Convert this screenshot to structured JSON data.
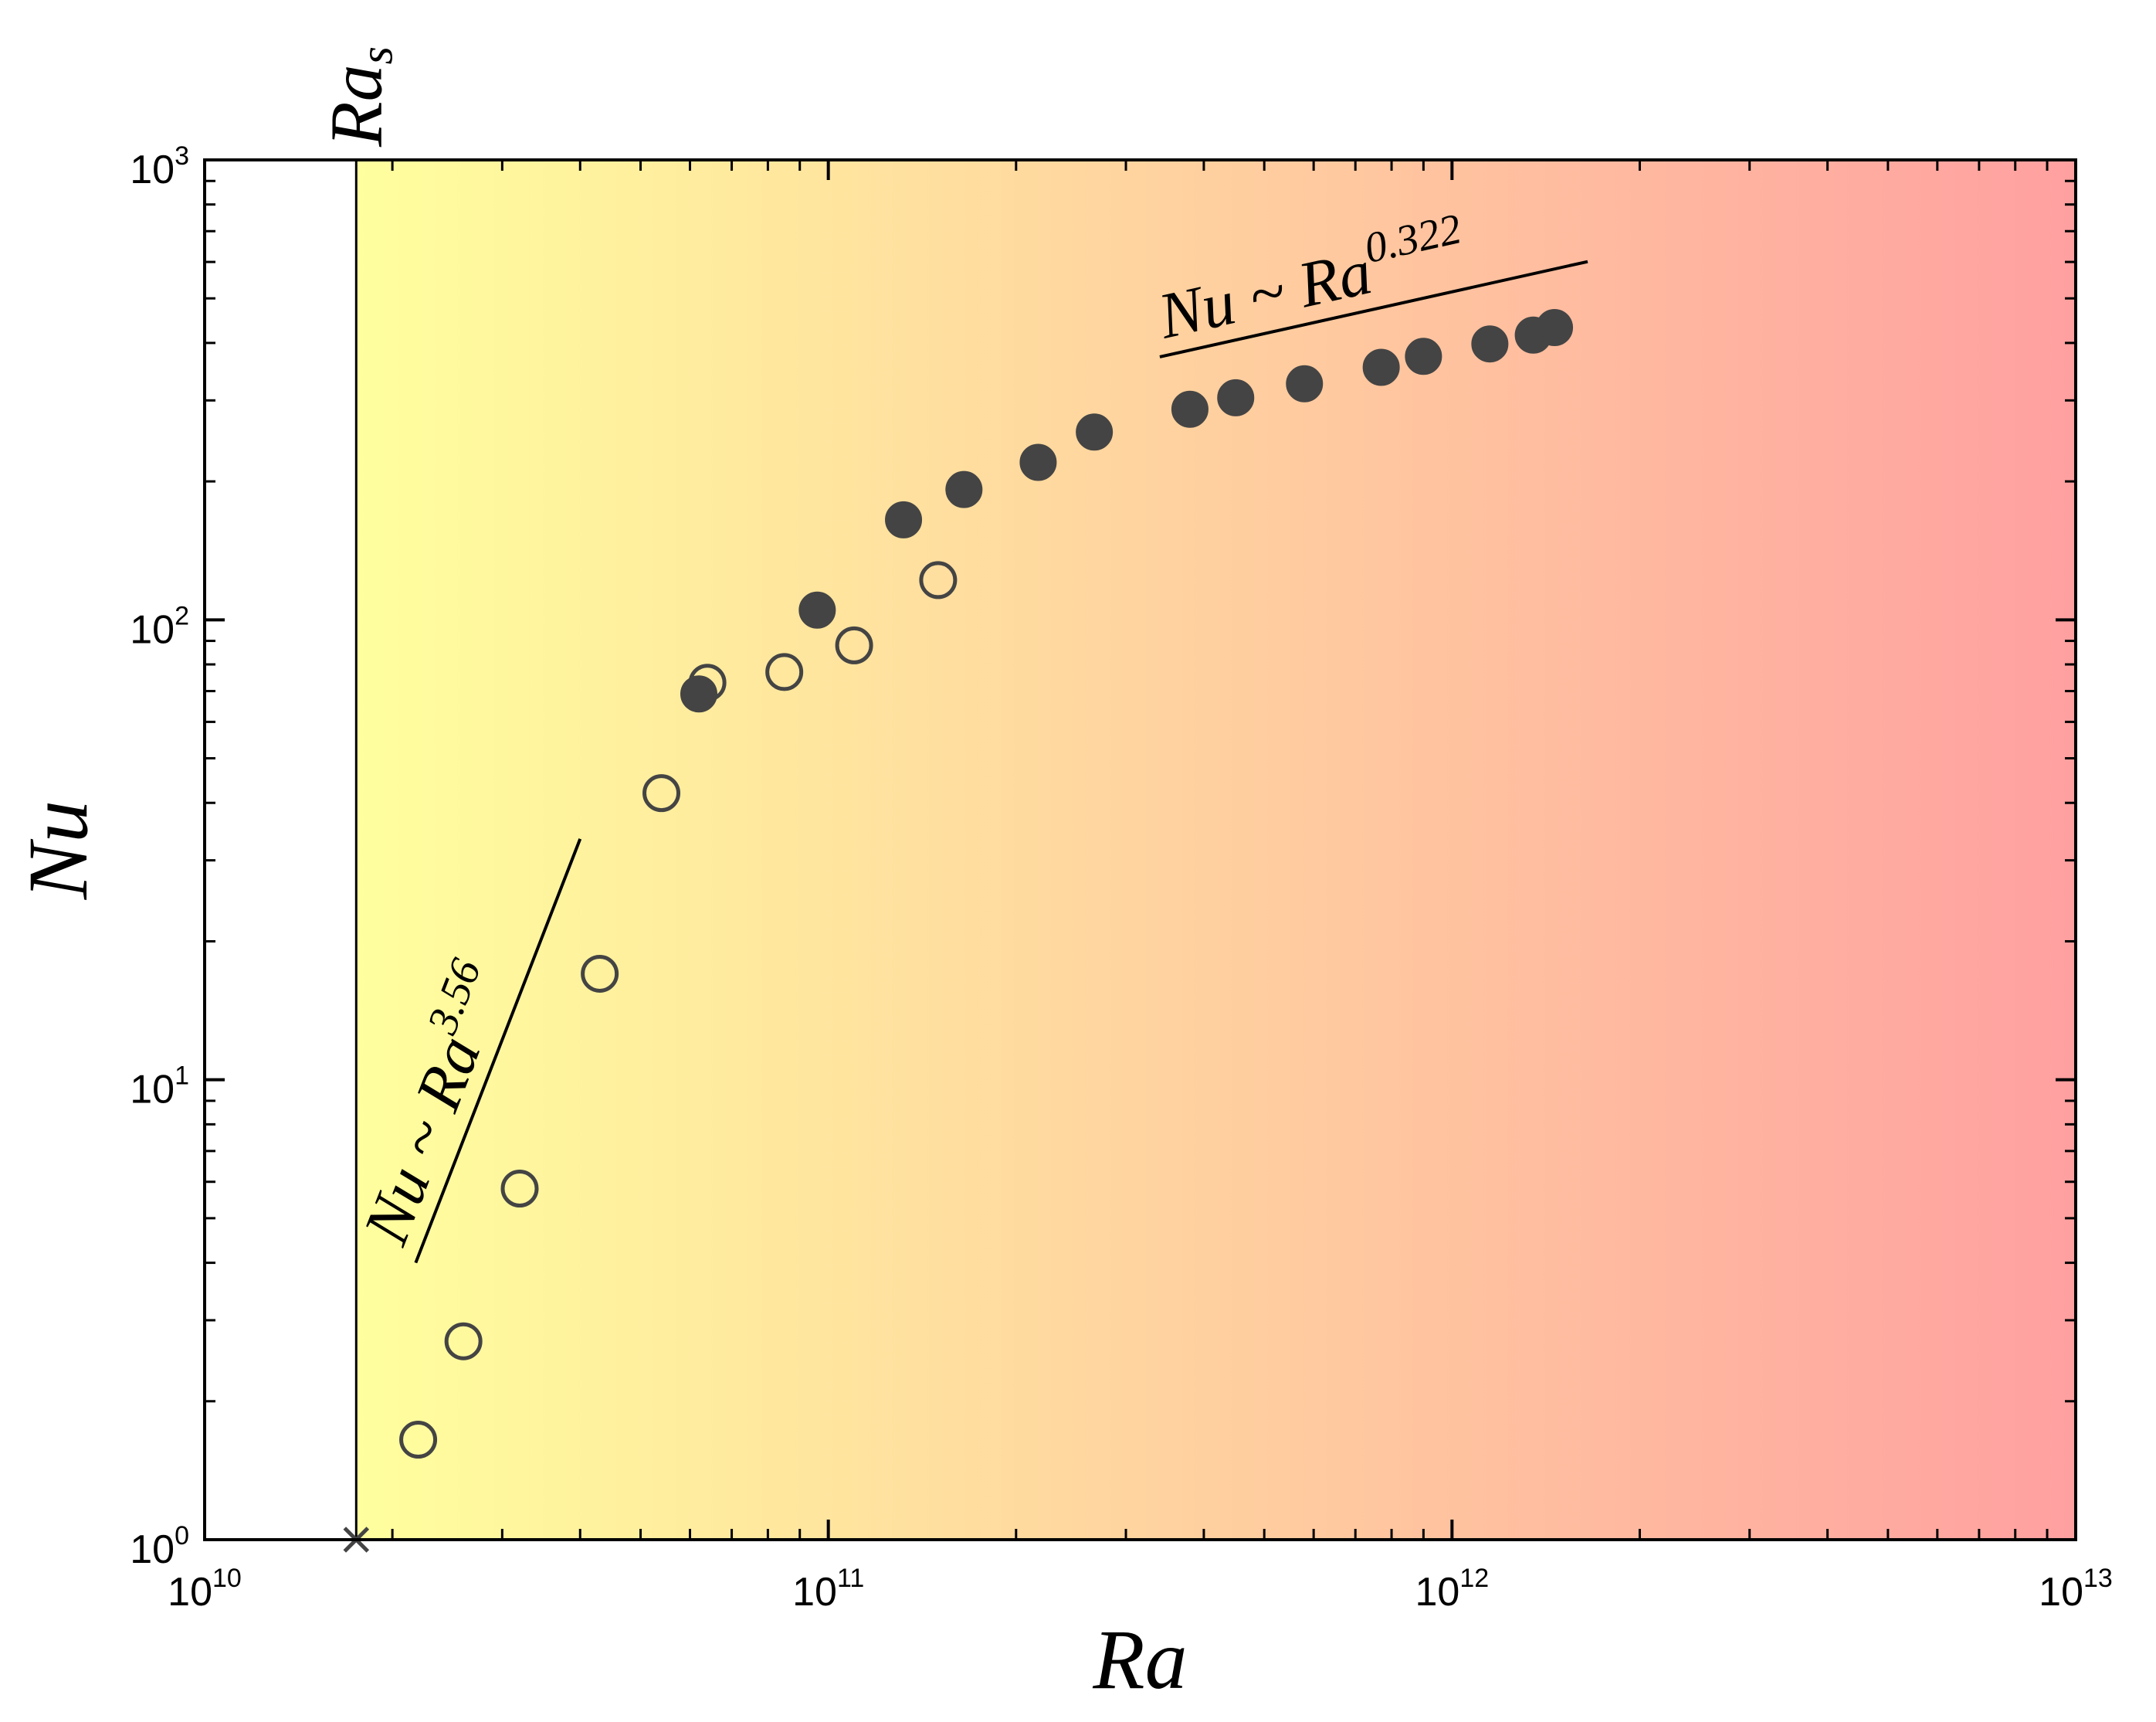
{
  "chart_data": {
    "type": "scatter",
    "xscale": "log",
    "yscale": "log",
    "xlim": [
      10000000000.0,
      10000000000000.0
    ],
    "ylim": [
      1,
      1000
    ],
    "xlabel": "Ra",
    "ylabel": "Nu",
    "x_ticks": [
      {
        "base": "10",
        "exp": "10",
        "value": 10000000000.0
      },
      {
        "base": "10",
        "exp": "11",
        "value": 100000000000.0
      },
      {
        "base": "10",
        "exp": "12",
        "value": 1000000000000.0
      },
      {
        "base": "10",
        "exp": "13",
        "value": 10000000000000.0
      }
    ],
    "y_ticks": [
      {
        "base": "10",
        "exp": "0",
        "value": 1
      },
      {
        "base": "10",
        "exp": "1",
        "value": 10
      },
      {
        "base": "10",
        "exp": "2",
        "value": 100
      },
      {
        "base": "10",
        "exp": "3",
        "value": 1000
      }
    ],
    "background_gradient": {
      "from": "#ffff9e",
      "to": "#ffa0a0"
    },
    "critical_line": {
      "x": 17500000000.0,
      "label_base": "Ra",
      "label_sub": "s"
    },
    "critical_marker": {
      "x": 17500000000.0,
      "y": 1,
      "symbol": "x",
      "color": "#444444"
    },
    "series": [
      {
        "marker": "open-circle",
        "color": "#444444",
        "points": [
          [
            22000000000.0,
            1.65
          ],
          [
            26000000000.0,
            2.7
          ],
          [
            32000000000.0,
            5.8
          ],
          [
            43000000000.0,
            17
          ],
          [
            54000000000.0,
            42
          ],
          [
            64000000000.0,
            73
          ],
          [
            85000000000.0,
            77
          ],
          [
            110000000000.0,
            88
          ],
          [
            150000000000.0,
            122
          ]
        ]
      },
      {
        "marker": "filled-circle",
        "color": "#444444",
        "points": [
          [
            62000000000.0,
            69
          ],
          [
            96000000000.0,
            105
          ],
          [
            132000000000.0,
            165
          ],
          [
            165000000000.0,
            192
          ],
          [
            217000000000.0,
            220
          ],
          [
            267000000000.0,
            256
          ],
          [
            380000000000.0,
            287
          ],
          [
            450000000000.0,
            304
          ],
          [
            580000000000.0,
            326
          ],
          [
            770000000000.0,
            354
          ],
          [
            900000000000.0,
            374
          ],
          [
            1150000000000.0,
            398
          ],
          [
            1350000000000.0,
            416
          ],
          [
            1460000000000.0,
            432
          ]
        ]
      }
    ],
    "fit_lines": [
      {
        "x1": 21800000000.0,
        "y1": 4.0,
        "x2": 40000000000.0,
        "y2": 33.4,
        "label_base": "Nu ~ Ra",
        "label_exp": "3.56"
      },
      {
        "x1": 340000000000.0,
        "y1": 373,
        "x2": 1650000000000.0,
        "y2": 601,
        "label_base": "Nu ~ Ra",
        "label_exp": "0.322"
      }
    ]
  }
}
